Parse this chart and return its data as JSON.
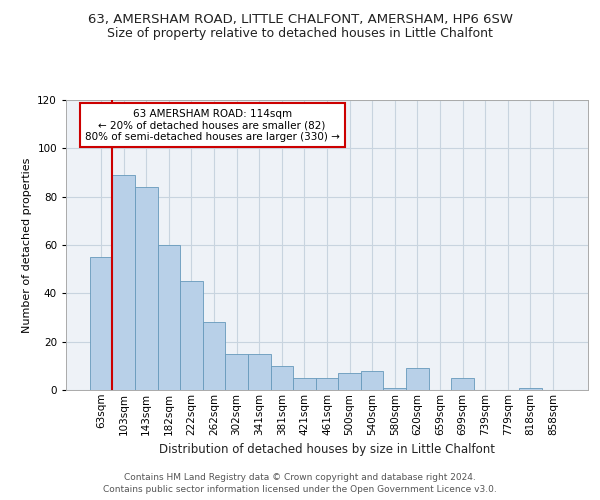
{
  "title1": "63, AMERSHAM ROAD, LITTLE CHALFONT, AMERSHAM, HP6 6SW",
  "title2": "Size of property relative to detached houses in Little Chalfont",
  "xlabel": "Distribution of detached houses by size in Little Chalfont",
  "ylabel": "Number of detached properties",
  "categories": [
    "63sqm",
    "103sqm",
    "143sqm",
    "182sqm",
    "222sqm",
    "262sqm",
    "302sqm",
    "341sqm",
    "381sqm",
    "421sqm",
    "461sqm",
    "500sqm",
    "540sqm",
    "580sqm",
    "620sqm",
    "659sqm",
    "699sqm",
    "739sqm",
    "779sqm",
    "818sqm",
    "858sqm"
  ],
  "values": [
    55,
    89,
    84,
    60,
    45,
    28,
    15,
    15,
    10,
    5,
    5,
    7,
    8,
    1,
    9,
    0,
    5,
    0,
    0,
    1,
    0
  ],
  "bar_color": "#b8d0e8",
  "bar_edge_color": "#6699bb",
  "vline_color": "#cc0000",
  "vline_x": 0.5,
  "annotation_text": "63 AMERSHAM ROAD: 114sqm\n← 20% of detached houses are smaller (82)\n80% of semi-detached houses are larger (330) →",
  "annotation_box_facecolor": "white",
  "annotation_box_edgecolor": "#cc0000",
  "ylim": [
    0,
    120
  ],
  "yticks": [
    0,
    20,
    40,
    60,
    80,
    100,
    120
  ],
  "bg_color": "#ffffff",
  "plot_bg_color": "#eef2f7",
  "grid_color": "#c8d4df",
  "title1_fontsize": 9.5,
  "title2_fontsize": 9,
  "tick_fontsize": 7.5,
  "ylabel_fontsize": 8,
  "xlabel_fontsize": 8.5,
  "ann_fontsize": 7.5,
  "footer1": "Contains HM Land Registry data © Crown copyright and database right 2024.",
  "footer2": "Contains public sector information licensed under the Open Government Licence v3.0.",
  "footer_fontsize": 6.5
}
